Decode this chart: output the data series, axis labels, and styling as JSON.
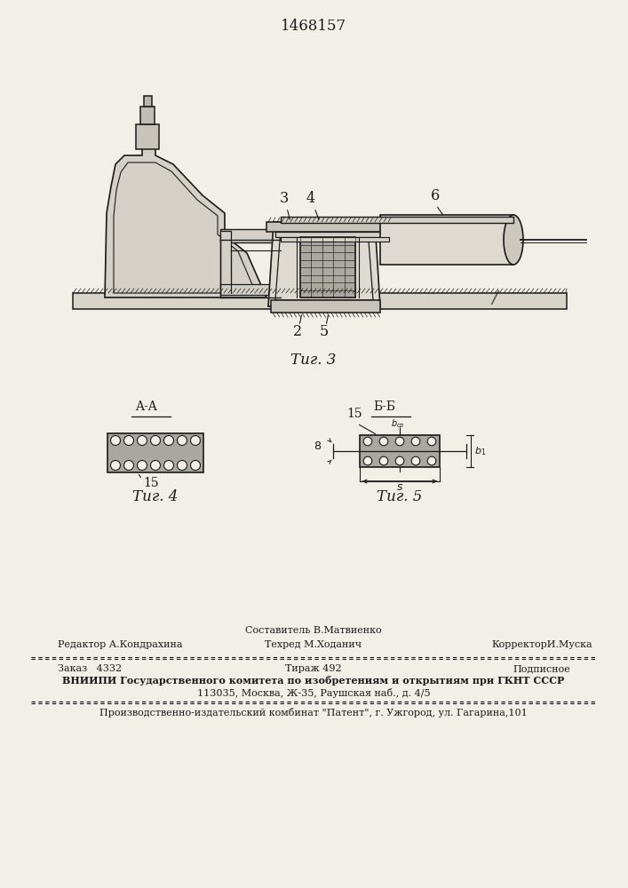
{
  "title": "1468157",
  "bg_color": "#f2efe8",
  "line_color": "#1a1a1a",
  "fig3_caption": "Τиг. 3",
  "fig4_caption": "Τиг. 4",
  "fig5_caption": "Τиг. 5",
  "label_AA": "A-A",
  "label_BB": "Б-Б",
  "footer": {
    "composer": "Составитель В.Матвиенко",
    "techred": "Техред М.Ходанич",
    "editor": "Редактор А.Кондрахина",
    "corrector": "КорректорИ.Муска",
    "order": "Заказ   4332",
    "tirazh": "Тираж 492",
    "podp": "Подписное",
    "vniipи": "ВНИИПИ Государственного комитета по изобретениям и открытиям при ГКНТ СССР",
    "address": "113035, Москва, Ж-35, Раушская наб., д. 4/5",
    "plant": "Производственно-издательский комбинат \"Патент\", г. Ужгород, ул. Гагарина,101"
  }
}
